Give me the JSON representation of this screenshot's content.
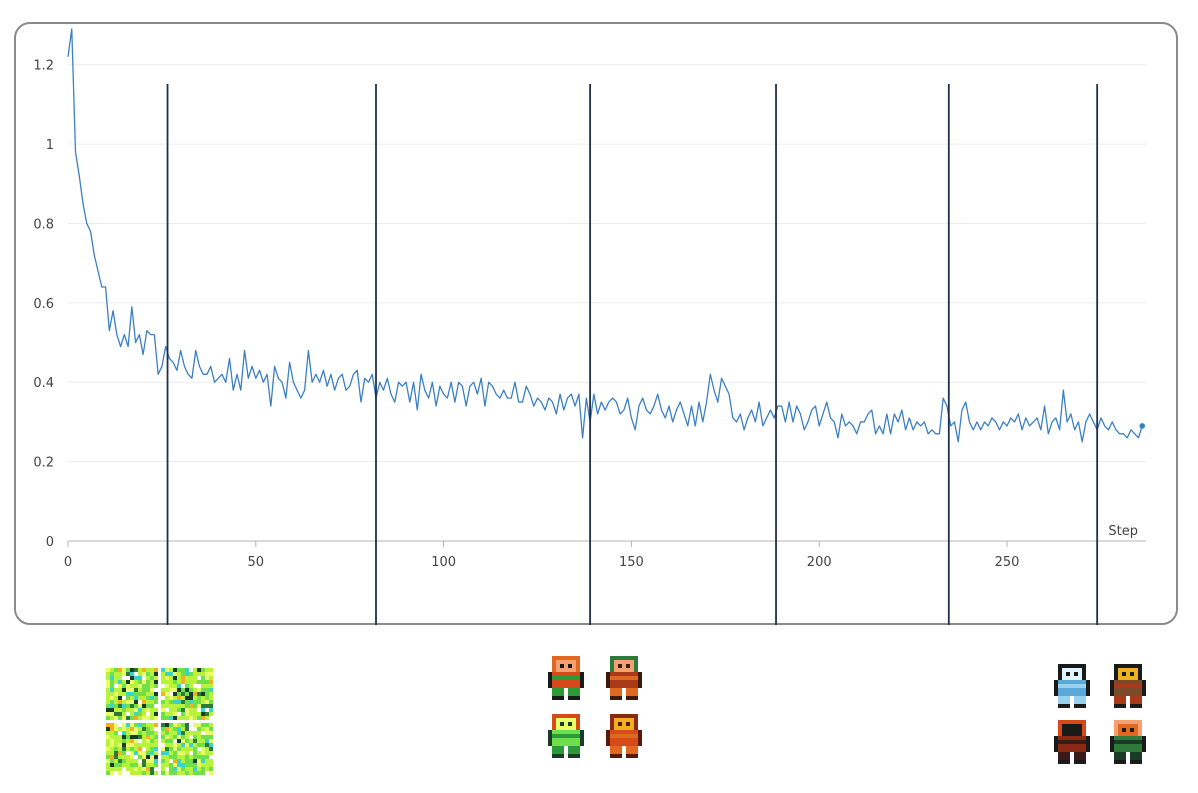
{
  "chart_data": {
    "type": "line",
    "title": "",
    "xlabel": "Step",
    "ylabel": "",
    "xlim": [
      0,
      287
    ],
    "ylim": [
      0,
      1.3
    ],
    "x_ticks": [
      "0",
      "50",
      "100",
      "150",
      "200",
      "250"
    ],
    "x_tick_values": [
      0,
      50,
      100,
      150,
      200,
      250
    ],
    "y_ticks": [
      "0",
      "0.2",
      "0.4",
      "0.6",
      "0.8",
      "1",
      "1.2"
    ],
    "y_tick_values": [
      0,
      0.2,
      0.4,
      0.6,
      0.8,
      1.0,
      1.2
    ],
    "grid": true,
    "line_color": "#3b7fc4",
    "marker_color": "#1f2f4a",
    "checkpoints": [
      26.5,
      82,
      139,
      188.5,
      234.5,
      274
    ],
    "series": [
      {
        "name": "",
        "points": [
          [
            0,
            1.22
          ],
          [
            1,
            1.29
          ],
          [
            2,
            0.98
          ],
          [
            3,
            0.92
          ],
          [
            4,
            0.85
          ],
          [
            5,
            0.8
          ],
          [
            6,
            0.78
          ],
          [
            7,
            0.72
          ],
          [
            8,
            0.68
          ],
          [
            9,
            0.64
          ],
          [
            10,
            0.64
          ],
          [
            11,
            0.53
          ],
          [
            12,
            0.58
          ],
          [
            13,
            0.52
          ],
          [
            14,
            0.49
          ],
          [
            15,
            0.52
          ],
          [
            16,
            0.49
          ],
          [
            17,
            0.59
          ],
          [
            18,
            0.5
          ],
          [
            19,
            0.52
          ],
          [
            20,
            0.47
          ],
          [
            21,
            0.53
          ],
          [
            22,
            0.52
          ],
          [
            23,
            0.52
          ],
          [
            24,
            0.42
          ],
          [
            25,
            0.44
          ],
          [
            26,
            0.49
          ],
          [
            27,
            0.46
          ],
          [
            28,
            0.45
          ],
          [
            29,
            0.43
          ],
          [
            30,
            0.48
          ],
          [
            31,
            0.44
          ],
          [
            32,
            0.42
          ],
          [
            33,
            0.41
          ],
          [
            34,
            0.48
          ],
          [
            35,
            0.44
          ],
          [
            36,
            0.42
          ],
          [
            37,
            0.42
          ],
          [
            38,
            0.44
          ],
          [
            39,
            0.4
          ],
          [
            40,
            0.41
          ],
          [
            41,
            0.42
          ],
          [
            42,
            0.4
          ],
          [
            43,
            0.46
          ],
          [
            44,
            0.38
          ],
          [
            45,
            0.42
          ],
          [
            46,
            0.38
          ],
          [
            47,
            0.48
          ],
          [
            48,
            0.41
          ],
          [
            49,
            0.44
          ],
          [
            50,
            0.41
          ],
          [
            51,
            0.43
          ],
          [
            52,
            0.4
          ],
          [
            53,
            0.42
          ],
          [
            54,
            0.34
          ],
          [
            55,
            0.44
          ],
          [
            56,
            0.41
          ],
          [
            57,
            0.4
          ],
          [
            58,
            0.36
          ],
          [
            59,
            0.45
          ],
          [
            60,
            0.4
          ],
          [
            61,
            0.38
          ],
          [
            62,
            0.36
          ],
          [
            63,
            0.38
          ],
          [
            64,
            0.48
          ],
          [
            65,
            0.4
          ],
          [
            66,
            0.42
          ],
          [
            67,
            0.4
          ],
          [
            68,
            0.43
          ],
          [
            69,
            0.39
          ],
          [
            70,
            0.42
          ],
          [
            71,
            0.38
          ],
          [
            72,
            0.41
          ],
          [
            73,
            0.42
          ],
          [
            74,
            0.38
          ],
          [
            75,
            0.39
          ],
          [
            76,
            0.42
          ],
          [
            77,
            0.43
          ],
          [
            78,
            0.35
          ],
          [
            79,
            0.41
          ],
          [
            80,
            0.4
          ],
          [
            81,
            0.42
          ],
          [
            82,
            0.36
          ],
          [
            83,
            0.4
          ],
          [
            84,
            0.38
          ],
          [
            85,
            0.41
          ],
          [
            86,
            0.37
          ],
          [
            87,
            0.35
          ],
          [
            88,
            0.4
          ],
          [
            89,
            0.39
          ],
          [
            90,
            0.4
          ],
          [
            91,
            0.35
          ],
          [
            92,
            0.4
          ],
          [
            93,
            0.33
          ],
          [
            94,
            0.42
          ],
          [
            95,
            0.38
          ],
          [
            96,
            0.36
          ],
          [
            97,
            0.4
          ],
          [
            98,
            0.34
          ],
          [
            99,
            0.39
          ],
          [
            100,
            0.37
          ],
          [
            101,
            0.36
          ],
          [
            102,
            0.4
          ],
          [
            103,
            0.35
          ],
          [
            104,
            0.4
          ],
          [
            105,
            0.39
          ],
          [
            106,
            0.34
          ],
          [
            107,
            0.39
          ],
          [
            108,
            0.4
          ],
          [
            109,
            0.37
          ],
          [
            110,
            0.41
          ],
          [
            111,
            0.34
          ],
          [
            112,
            0.4
          ],
          [
            113,
            0.39
          ],
          [
            114,
            0.37
          ],
          [
            115,
            0.36
          ],
          [
            116,
            0.38
          ],
          [
            117,
            0.36
          ],
          [
            118,
            0.36
          ],
          [
            119,
            0.4
          ],
          [
            120,
            0.35
          ],
          [
            121,
            0.35
          ],
          [
            122,
            0.39
          ],
          [
            123,
            0.37
          ],
          [
            124,
            0.34
          ],
          [
            125,
            0.36
          ],
          [
            126,
            0.35
          ],
          [
            127,
            0.33
          ],
          [
            128,
            0.36
          ],
          [
            129,
            0.35
          ],
          [
            130,
            0.32
          ],
          [
            131,
            0.37
          ],
          [
            132,
            0.33
          ],
          [
            133,
            0.36
          ],
          [
            134,
            0.37
          ],
          [
            135,
            0.34
          ],
          [
            136,
            0.37
          ],
          [
            137,
            0.26
          ],
          [
            138,
            0.36
          ],
          [
            139,
            0.3
          ],
          [
            140,
            0.37
          ],
          [
            141,
            0.32
          ],
          [
            142,
            0.35
          ],
          [
            143,
            0.33
          ],
          [
            144,
            0.35
          ],
          [
            145,
            0.36
          ],
          [
            146,
            0.35
          ],
          [
            147,
            0.32
          ],
          [
            148,
            0.33
          ],
          [
            149,
            0.36
          ],
          [
            150,
            0.31
          ],
          [
            151,
            0.28
          ],
          [
            152,
            0.34
          ],
          [
            153,
            0.36
          ],
          [
            154,
            0.33
          ],
          [
            155,
            0.32
          ],
          [
            156,
            0.34
          ],
          [
            157,
            0.37
          ],
          [
            158,
            0.33
          ],
          [
            159,
            0.31
          ],
          [
            160,
            0.34
          ],
          [
            161,
            0.3
          ],
          [
            162,
            0.33
          ],
          [
            163,
            0.35
          ],
          [
            164,
            0.32
          ],
          [
            165,
            0.29
          ],
          [
            166,
            0.34
          ],
          [
            167,
            0.29
          ],
          [
            168,
            0.35
          ],
          [
            169,
            0.3
          ],
          [
            170,
            0.35
          ],
          [
            171,
            0.42
          ],
          [
            172,
            0.38
          ],
          [
            173,
            0.35
          ],
          [
            174,
            0.41
          ],
          [
            175,
            0.39
          ],
          [
            176,
            0.37
          ],
          [
            177,
            0.31
          ],
          [
            178,
            0.3
          ],
          [
            179,
            0.32
          ],
          [
            180,
            0.28
          ],
          [
            181,
            0.31
          ],
          [
            182,
            0.33
          ],
          [
            183,
            0.3
          ],
          [
            184,
            0.35
          ],
          [
            185,
            0.29
          ],
          [
            186,
            0.31
          ],
          [
            187,
            0.33
          ],
          [
            188,
            0.31
          ],
          [
            189,
            0.34
          ],
          [
            190,
            0.34
          ],
          [
            191,
            0.3
          ],
          [
            192,
            0.35
          ],
          [
            193,
            0.3
          ],
          [
            194,
            0.34
          ],
          [
            195,
            0.32
          ],
          [
            196,
            0.28
          ],
          [
            197,
            0.3
          ],
          [
            198,
            0.33
          ],
          [
            199,
            0.34
          ],
          [
            200,
            0.29
          ],
          [
            201,
            0.32
          ],
          [
            202,
            0.35
          ],
          [
            203,
            0.31
          ],
          [
            204,
            0.3
          ],
          [
            205,
            0.26
          ],
          [
            206,
            0.32
          ],
          [
            207,
            0.29
          ],
          [
            208,
            0.3
          ],
          [
            209,
            0.29
          ],
          [
            210,
            0.27
          ],
          [
            211,
            0.3
          ],
          [
            212,
            0.3
          ],
          [
            213,
            0.32
          ],
          [
            214,
            0.33
          ],
          [
            215,
            0.27
          ],
          [
            216,
            0.29
          ],
          [
            217,
            0.27
          ],
          [
            218,
            0.32
          ],
          [
            219,
            0.27
          ],
          [
            220,
            0.32
          ],
          [
            221,
            0.3
          ],
          [
            222,
            0.33
          ],
          [
            223,
            0.28
          ],
          [
            224,
            0.31
          ],
          [
            225,
            0.28
          ],
          [
            226,
            0.3
          ],
          [
            227,
            0.29
          ],
          [
            228,
            0.3
          ],
          [
            229,
            0.27
          ],
          [
            230,
            0.28
          ],
          [
            231,
            0.27
          ],
          [
            232,
            0.27
          ],
          [
            233,
            0.36
          ],
          [
            234,
            0.34
          ],
          [
            235,
            0.29
          ],
          [
            236,
            0.3
          ],
          [
            237,
            0.25
          ],
          [
            238,
            0.33
          ],
          [
            239,
            0.35
          ],
          [
            240,
            0.3
          ],
          [
            241,
            0.28
          ],
          [
            242,
            0.3
          ],
          [
            243,
            0.28
          ],
          [
            244,
            0.3
          ],
          [
            245,
            0.29
          ],
          [
            246,
            0.31
          ],
          [
            247,
            0.3
          ],
          [
            248,
            0.28
          ],
          [
            249,
            0.3
          ],
          [
            250,
            0.29
          ],
          [
            251,
            0.31
          ],
          [
            252,
            0.3
          ],
          [
            253,
            0.32
          ],
          [
            254,
            0.28
          ],
          [
            255,
            0.31
          ],
          [
            256,
            0.29
          ],
          [
            257,
            0.3
          ],
          [
            258,
            0.31
          ],
          [
            259,
            0.28
          ],
          [
            260,
            0.34
          ],
          [
            261,
            0.27
          ],
          [
            262,
            0.3
          ],
          [
            263,
            0.31
          ],
          [
            264,
            0.28
          ],
          [
            265,
            0.38
          ],
          [
            266,
            0.3
          ],
          [
            267,
            0.32
          ],
          [
            268,
            0.28
          ],
          [
            269,
            0.3
          ],
          [
            270,
            0.25
          ],
          [
            271,
            0.3
          ],
          [
            272,
            0.32
          ],
          [
            273,
            0.3
          ],
          [
            274,
            0.28
          ],
          [
            275,
            0.31
          ],
          [
            276,
            0.29
          ],
          [
            277,
            0.28
          ],
          [
            278,
            0.3
          ],
          [
            279,
            0.28
          ],
          [
            280,
            0.27
          ],
          [
            281,
            0.27
          ],
          [
            282,
            0.26
          ],
          [
            283,
            0.28
          ],
          [
            284,
            0.27
          ],
          [
            285,
            0.26
          ],
          [
            286,
            0.29
          ]
        ]
      }
    ]
  },
  "sprites": {
    "palette": [
      "#ffffff",
      "#b8f23a",
      "#6fe04a",
      "#e8ff6a",
      "#3ad4c8",
      "#1a3a2a",
      "#2d7a3a",
      "#f0b020",
      "#d64a1a",
      "#8a2a14",
      "#f4a070",
      "#7a4a2a",
      "#5aa8d8",
      "#1a1a1a",
      "#a83a1a",
      "#e06820"
    ],
    "groups": [
      {
        "name": "noise-samples",
        "cells": [
          "noise",
          "noise",
          "noise",
          "noise"
        ]
      },
      {
        "name": "character-samples",
        "cells": [
          "green-hero",
          "brown-hero",
          "green-bird",
          "red-blob"
        ]
      },
      {
        "name": "item-samples",
        "cells": [
          "blue-potion",
          "amulet",
          "dark-figure",
          "green-ranger"
        ]
      }
    ]
  }
}
